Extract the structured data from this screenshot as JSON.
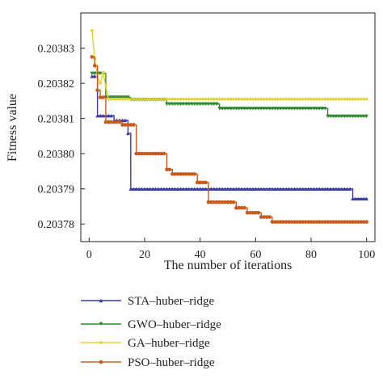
{
  "chart_data": {
    "type": "line",
    "title": "",
    "xlabel": "The number of iterations",
    "ylabel": "Fitness value",
    "xlim": [
      -3,
      103
    ],
    "ylim": [
      0.203775,
      0.20384
    ],
    "xticks": [
      0,
      20,
      40,
      60,
      80,
      100
    ],
    "xtick_labels": [
      "0",
      "20",
      "40",
      "60",
      "80",
      "100"
    ],
    "yticks": [
      0.20378,
      0.20379,
      0.2038,
      0.20381,
      0.20382,
      0.20383
    ],
    "ytick_labels": [
      "0.20378",
      "0.20379",
      "0.20380",
      "0.20381",
      "0.20382",
      "0.20383"
    ],
    "grid": false,
    "legend_position": "below-left",
    "series": [
      {
        "name": "STA–huber–ridge",
        "color": "#3b3ba8",
        "marker": "triangle-up",
        "points": [
          [
            1,
            0.203822
          ],
          [
            3,
            0.203822
          ],
          [
            3,
            0.2038108
          ],
          [
            9,
            0.2038108
          ],
          [
            9,
            0.2038095
          ],
          [
            14,
            0.2038095
          ],
          [
            14,
            0.2038058
          ],
          [
            15,
            0.2038058
          ],
          [
            15,
            0.20379
          ],
          [
            95,
            0.20379
          ],
          [
            95,
            0.2037872
          ],
          [
            100,
            0.2037872
          ]
        ]
      },
      {
        "name": "GWO–huber–ridge",
        "color": "#2e8b2e",
        "marker": "triangle-down",
        "points": [
          [
            1,
            0.2038228
          ],
          [
            6,
            0.2038228
          ],
          [
            6,
            0.203816
          ],
          [
            15,
            0.203816
          ],
          [
            15,
            0.2038153
          ],
          [
            28,
            0.2038153
          ],
          [
            28,
            0.2038141
          ],
          [
            47,
            0.2038141
          ],
          [
            47,
            0.2038128
          ],
          [
            86,
            0.2038128
          ],
          [
            86,
            0.2038106
          ],
          [
            100,
            0.2038106
          ]
        ]
      },
      {
        "name": "GA–huber–ridge",
        "color": "#e0d030",
        "marker": "diamond",
        "points": [
          [
            1,
            0.203835
          ],
          [
            2,
            0.203827
          ],
          [
            3,
            0.203822
          ],
          [
            4,
            0.20382
          ],
          [
            5,
            0.203823
          ],
          [
            6,
            0.203819
          ],
          [
            7,
            0.2038155
          ],
          [
            100,
            0.2038155
          ]
        ]
      },
      {
        "name": "PSO–huber–ridge",
        "color": "#c85a1e",
        "marker": "circle",
        "points": [
          [
            1,
            0.2038275
          ],
          [
            2,
            0.2038275
          ],
          [
            2,
            0.203825
          ],
          [
            3,
            0.203825
          ],
          [
            3,
            0.203818
          ],
          [
            4,
            0.203818
          ],
          [
            4,
            0.203816
          ],
          [
            6,
            0.203816
          ],
          [
            6,
            0.203809
          ],
          [
            12,
            0.203809
          ],
          [
            12,
            0.2038082
          ],
          [
            17,
            0.2038082
          ],
          [
            17,
            0.2038
          ],
          [
            28,
            0.2038
          ],
          [
            28,
            0.2037955
          ],
          [
            30,
            0.2037955
          ],
          [
            30,
            0.2037942
          ],
          [
            39,
            0.2037942
          ],
          [
            39,
            0.2037918
          ],
          [
            43,
            0.2037918
          ],
          [
            43,
            0.2037862
          ],
          [
            53,
            0.2037862
          ],
          [
            53,
            0.2037846
          ],
          [
            57,
            0.2037846
          ],
          [
            57,
            0.2037832
          ],
          [
            62,
            0.2037832
          ],
          [
            62,
            0.203782
          ],
          [
            66,
            0.203782
          ],
          [
            66,
            0.2037806
          ],
          [
            100,
            0.2037806
          ]
        ]
      }
    ]
  }
}
